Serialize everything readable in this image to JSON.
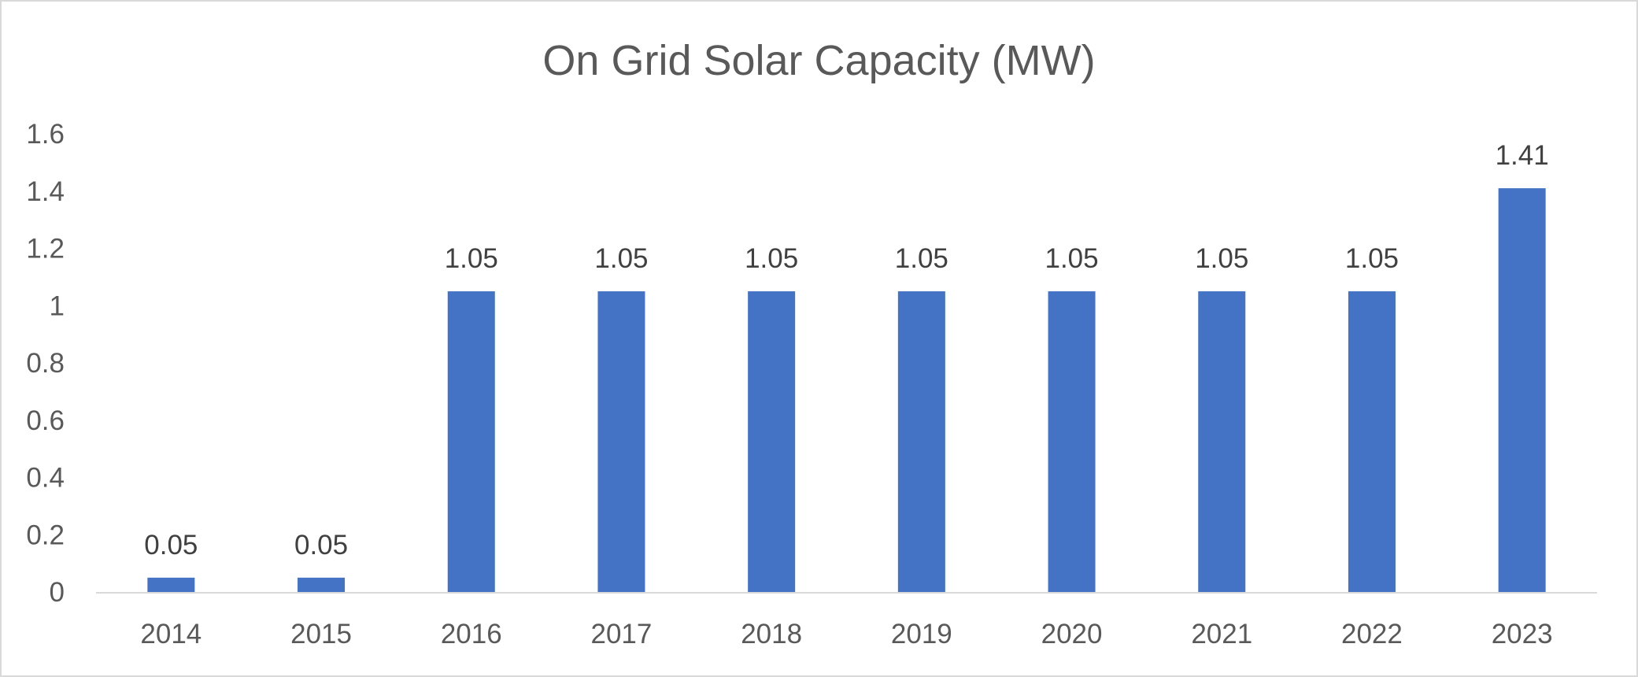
{
  "chart_data": {
    "type": "bar",
    "title": "On Grid Solar Capacity (MW)",
    "xlabel": "",
    "ylabel": "",
    "categories": [
      "2014",
      "2015",
      "2016",
      "2017",
      "2018",
      "2019",
      "2020",
      "2021",
      "2022",
      "2023"
    ],
    "values": [
      0.05,
      0.05,
      1.05,
      1.05,
      1.05,
      1.05,
      1.05,
      1.05,
      1.05,
      1.41
    ],
    "data_labels": [
      "0.05",
      "0.05",
      "1.05",
      "1.05",
      "1.05",
      "1.05",
      "1.05",
      "1.05",
      "1.05",
      "1.41"
    ],
    "ylim": [
      0,
      1.6
    ],
    "yticks": [
      "0",
      "0.2",
      "0.4",
      "0.6",
      "0.8",
      "1",
      "1.2",
      "1.4",
      "1.6"
    ],
    "grid": false,
    "legend": "none",
    "colors": {
      "bar": "#4472c4",
      "axis": "#d9d9d9",
      "text": "#595959",
      "data_label": "#404040"
    }
  }
}
